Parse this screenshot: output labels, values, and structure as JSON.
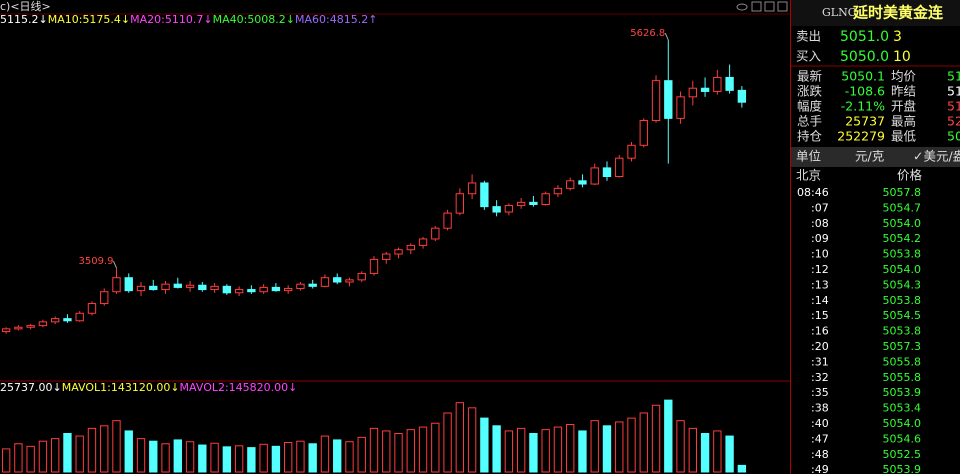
{
  "toolbar": {
    "period": "c)<日线>"
  },
  "indicators": {
    "ma": [
      {
        "text": "5115.2↓",
        "color": "#ffffff"
      },
      {
        "text": "MA10:5175.4↓",
        "color": "#ffff33"
      },
      {
        "text": "MA20:5110.7↓",
        "color": "#ff44ff"
      },
      {
        "text": "MA40:5008.2↓",
        "color": "#33ff33"
      },
      {
        "text": "MA60:4815.2↑",
        "color": "#9a6bff"
      }
    ]
  },
  "price_chart": {
    "type": "candlestick",
    "ylim": [
      2470,
      5860
    ],
    "up_color": "#ff3c3c",
    "down_color": "#54ffff",
    "candles": [
      [
        2920,
        2960,
        2900,
        2945
      ],
      [
        2945,
        2980,
        2930,
        2960
      ],
      [
        2960,
        2990,
        2940,
        2975
      ],
      [
        2975,
        3030,
        2960,
        3010
      ],
      [
        3010,
        3060,
        2990,
        3040
      ],
      [
        3040,
        3080,
        3000,
        3020
      ],
      [
        3020,
        3110,
        3010,
        3090
      ],
      [
        3090,
        3200,
        3070,
        3180
      ],
      [
        3180,
        3320,
        3160,
        3290
      ],
      [
        3290,
        3509.9,
        3270,
        3420
      ],
      [
        3420,
        3460,
        3280,
        3300
      ],
      [
        3300,
        3380,
        3250,
        3340
      ],
      [
        3340,
        3400,
        3300,
        3310
      ],
      [
        3310,
        3390,
        3270,
        3360
      ],
      [
        3360,
        3420,
        3320,
        3330
      ],
      [
        3330,
        3390,
        3290,
        3350
      ],
      [
        3350,
        3380,
        3290,
        3310
      ],
      [
        3310,
        3370,
        3280,
        3340
      ],
      [
        3340,
        3360,
        3260,
        3280
      ],
      [
        3280,
        3340,
        3250,
        3310
      ],
      [
        3310,
        3350,
        3270,
        3290
      ],
      [
        3290,
        3360,
        3270,
        3330
      ],
      [
        3330,
        3370,
        3290,
        3300
      ],
      [
        3300,
        3350,
        3270,
        3320
      ],
      [
        3320,
        3380,
        3300,
        3360
      ],
      [
        3360,
        3400,
        3320,
        3340
      ],
      [
        3340,
        3450,
        3330,
        3420
      ],
      [
        3420,
        3460,
        3360,
        3380
      ],
      [
        3380,
        3420,
        3340,
        3400
      ],
      [
        3400,
        3480,
        3380,
        3460
      ],
      [
        3460,
        3620,
        3440,
        3590
      ],
      [
        3590,
        3660,
        3550,
        3640
      ],
      [
        3640,
        3700,
        3600,
        3680
      ],
      [
        3680,
        3740,
        3640,
        3720
      ],
      [
        3720,
        3800,
        3690,
        3780
      ],
      [
        3780,
        3900,
        3760,
        3880
      ],
      [
        3880,
        4050,
        3860,
        4020
      ],
      [
        4020,
        4250,
        4000,
        4200
      ],
      [
        4200,
        4380,
        4150,
        4300
      ],
      [
        4300,
        4320,
        4050,
        4080
      ],
      [
        4080,
        4140,
        3990,
        4030
      ],
      [
        4030,
        4110,
        4000,
        4090
      ],
      [
        4090,
        4160,
        4060,
        4120
      ],
      [
        4120,
        4180,
        4080,
        4100
      ],
      [
        4100,
        4220,
        4090,
        4200
      ],
      [
        4200,
        4280,
        4170,
        4250
      ],
      [
        4250,
        4350,
        4230,
        4320
      ],
      [
        4320,
        4380,
        4260,
        4290
      ],
      [
        4290,
        4480,
        4280,
        4440
      ],
      [
        4440,
        4500,
        4320,
        4360
      ],
      [
        4360,
        4560,
        4350,
        4530
      ],
      [
        4530,
        4680,
        4500,
        4650
      ],
      [
        4650,
        4900,
        4630,
        4880
      ],
      [
        4880,
        5300,
        4860,
        5250
      ],
      [
        5250,
        5626.8,
        4480,
        4900
      ],
      [
        4900,
        5150,
        4850,
        5100
      ],
      [
        5100,
        5250,
        5020,
        5180
      ],
      [
        5180,
        5280,
        5100,
        5150
      ],
      [
        5150,
        5350,
        5120,
        5280
      ],
      [
        5280,
        5400,
        5130,
        5160
      ],
      [
        5160,
        5200,
        5000,
        5050.1
      ]
    ]
  },
  "volume_chart": {
    "type": "bar",
    "ylim": [
      0,
      300000
    ],
    "legend": [
      {
        "text": "25737.00↓",
        "color": "#ffffff"
      },
      {
        "text": "MAVOL1:143120.00↓",
        "color": "#ffff33"
      },
      {
        "text": "MAVOL2:145820.00↓",
        "color": "#ff44ff"
      }
    ],
    "values": [
      90000,
      110000,
      100000,
      120000,
      130000,
      150000,
      140000,
      170000,
      180000,
      200000,
      160000,
      130000,
      120000,
      110000,
      125000,
      118000,
      105000,
      112000,
      98000,
      102000,
      95000,
      108000,
      100000,
      115000,
      120000,
      110000,
      140000,
      125000,
      118000,
      135000,
      170000,
      160000,
      150000,
      165000,
      175000,
      190000,
      230000,
      270000,
      250000,
      210000,
      180000,
      160000,
      170000,
      150000,
      165000,
      175000,
      185000,
      160000,
      200000,
      180000,
      195000,
      210000,
      230000,
      260000,
      280000,
      200000,
      170000,
      150000,
      160000,
      140000,
      25737
    ]
  },
  "quote": {
    "code": "GLNC",
    "name": "延时美黄金连",
    "book": [
      {
        "label": "卖出",
        "price": "5051.0",
        "size": "3"
      },
      {
        "label": "买入",
        "price": "5050.0",
        "size": "10"
      }
    ],
    "stats": [
      {
        "label": "最新",
        "value": "5050.1",
        "color": "#33ff33",
        "label2": "均价",
        "value2": "51",
        "color2": "#33ff33"
      },
      {
        "label": "涨跌",
        "value": "-108.6",
        "color": "#33ff33",
        "label2": "昨结",
        "value2": "51",
        "color2": "#ffffff"
      },
      {
        "label": "幅度",
        "value": "-2.11%",
        "color": "#33ff33",
        "label2": "开盘",
        "value2": "51",
        "color2": "#ff4444"
      },
      {
        "label": "总手",
        "value": "25737",
        "color": "#ffff33",
        "label2": "最高",
        "value2": "52",
        "color2": "#ff4444"
      },
      {
        "label": "持仓",
        "value": "252279",
        "color": "#ffff33",
        "label2": "最低",
        "value2": "50",
        "color2": "#33ff33"
      }
    ],
    "unit": {
      "label": "单位",
      "cny": "元/克",
      "usd": "✓美元/盎"
    },
    "ticks_header": {
      "time": "北京",
      "price": "价格"
    },
    "trades": {
      "times": [
        "08:46",
        ":07",
        ":08",
        ":09",
        ":10",
        ":12",
        ":13",
        ":14",
        ":15",
        ":16",
        ":20",
        ":31",
        ":32",
        ":35",
        ":38",
        ":40",
        ":47",
        ":48",
        ":49"
      ],
      "prices": [
        "5057.8",
        "5054.7",
        "5054.0",
        "5054.2",
        "5053.8",
        "5054.0",
        "5054.3",
        "5053.8",
        "5054.5",
        "5053.8",
        "5057.3",
        "5055.8",
        "5055.8",
        "5053.9",
        "5053.4",
        "5054.0",
        "5054.6",
        "5052.5",
        "5053.9"
      ]
    }
  }
}
